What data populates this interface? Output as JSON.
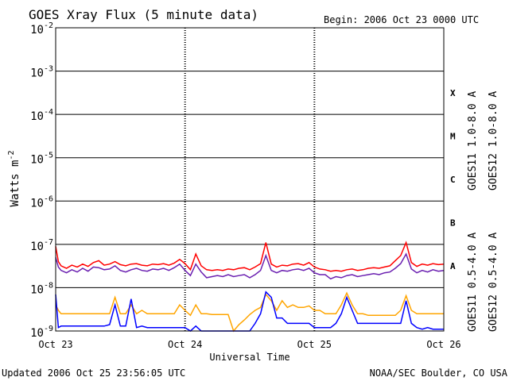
{
  "header": {
    "title": "GOES Xray Flux (5 minute data)",
    "begin": "Begin:  2006 Oct 23 0000 UTC"
  },
  "footer": {
    "updated": "Updated 2006 Oct 25 23:56:05 UTC",
    "source": "NOAA/SEC Boulder, CO USA"
  },
  "colors": {
    "goes11_long": "#6a1fb0",
    "goes12_long": "#ff0000",
    "goes11_short": "#ffa500",
    "goes12_short": "#0000ff",
    "axis": "#000000",
    "background": "#ffffff"
  },
  "chart_data": {
    "type": "line",
    "y_scale": "log",
    "ylim": [
      1e-09,
      0.01
    ],
    "ylabel": "Watts m",
    "ylabel_sup": "-2",
    "y_tick_labels": [
      {
        "value": 0.01,
        "base": "10",
        "exp": "-2"
      },
      {
        "value": 0.001,
        "base": "10",
        "exp": "-3"
      },
      {
        "value": 0.0001,
        "base": "10",
        "exp": "-4"
      },
      {
        "value": 1e-05,
        "base": "10",
        "exp": "-5"
      },
      {
        "value": 1e-06,
        "base": "10",
        "exp": "-6"
      },
      {
        "value": 1e-07,
        "base": "10",
        "exp": "-7"
      },
      {
        "value": 1e-08,
        "base": "10",
        "exp": "-8"
      },
      {
        "value": 1e-09,
        "base": "10",
        "exp": "-9"
      }
    ],
    "flare_classes": [
      {
        "label": "X",
        "from": 0.0001,
        "to": 0.001
      },
      {
        "label": "M",
        "from": 1e-05,
        "to": 0.0001
      },
      {
        "label": "C",
        "from": 1e-06,
        "to": 1e-05
      },
      {
        "label": "B",
        "from": 1e-07,
        "to": 1e-06
      },
      {
        "label": "A",
        "from": 1e-08,
        "to": 1e-07
      }
    ],
    "xlabel": "Universal Time",
    "xlim_hours": [
      0,
      72
    ],
    "x_ticks": [
      {
        "hours": 0,
        "label": "Oct 23"
      },
      {
        "hours": 24,
        "label": "Oct 24"
      },
      {
        "hours": 48,
        "label": "Oct 25"
      },
      {
        "hours": 72,
        "label": "Oct 26"
      }
    ],
    "grid": "horizontal lines at each decade; dotted day separators",
    "legend": "right side, rotated",
    "series": [
      {
        "name": "GOES11 1.0-8.0 A",
        "color_key": "goes11_long",
        "x": [
          0,
          0.5,
          1,
          2,
          3,
          4,
          5,
          6,
          7,
          8,
          9,
          10,
          11,
          12,
          13,
          14,
          15,
          16,
          17,
          18,
          19,
          20,
          21,
          22,
          23,
          24,
          25,
          26,
          27,
          28,
          29,
          30,
          31,
          32,
          33,
          34,
          35,
          36,
          37,
          38,
          39,
          40,
          41,
          42,
          43,
          44,
          45,
          46,
          47,
          48,
          49,
          50,
          51,
          52,
          53,
          54,
          55,
          56,
          57,
          58,
          59,
          60,
          61,
          62,
          63,
          64,
          65,
          66,
          67,
          68,
          69,
          70,
          71,
          72
        ],
        "y": [
          5e-08,
          3e-08,
          2.5e-08,
          2.2e-08,
          2.6e-08,
          2.3e-08,
          2.8e-08,
          2.4e-08,
          3e-08,
          2.9e-08,
          2.6e-08,
          2.7e-08,
          3.2e-08,
          2.5e-08,
          2.3e-08,
          2.6e-08,
          2.8e-08,
          2.5e-08,
          2.4e-08,
          2.7e-08,
          2.6e-08,
          2.8e-08,
          2.5e-08,
          2.9e-08,
          3.5e-08,
          2.5e-08,
          1.9e-08,
          3.5e-08,
          2.3e-08,
          1.7e-08,
          1.8e-08,
          1.9e-08,
          1.8e-08,
          2e-08,
          1.8e-08,
          1.9e-08,
          2e-08,
          1.7e-08,
          2e-08,
          2.5e-08,
          5.5e-08,
          2.5e-08,
          2.2e-08,
          2.5e-08,
          2.4e-08,
          2.6e-08,
          2.7e-08,
          2.5e-08,
          2.8e-08,
          2.2e-08,
          2e-08,
          2e-08,
          1.6e-08,
          1.8e-08,
          1.7e-08,
          1.9e-08,
          2e-08,
          1.8e-08,
          1.9e-08,
          2e-08,
          2.1e-08,
          2e-08,
          2.2e-08,
          2.3e-08,
          2.8e-08,
          3.6e-08,
          6e-08,
          2.7e-08,
          2.2e-08,
          2.5e-08,
          2.3e-08,
          2.6e-08,
          2.4e-08,
          2.5e-08
        ]
      },
      {
        "name": "GOES12 1.0-8.0 A",
        "color_key": "goes12_long",
        "x": [
          0,
          0.5,
          1,
          2,
          3,
          4,
          5,
          6,
          7,
          8,
          9,
          10,
          11,
          12,
          13,
          14,
          15,
          16,
          17,
          18,
          19,
          20,
          21,
          22,
          23,
          24,
          25,
          26,
          27,
          28,
          29,
          30,
          31,
          32,
          33,
          34,
          35,
          36,
          37,
          38,
          39,
          40,
          41,
          42,
          43,
          44,
          45,
          46,
          47,
          48,
          49,
          50,
          51,
          52,
          53,
          54,
          55,
          56,
          57,
          58,
          59,
          60,
          61,
          62,
          63,
          64,
          65,
          66,
          67,
          68,
          69,
          70,
          71,
          72
        ],
        "y": [
          9e-08,
          4e-08,
          3.2e-08,
          2.8e-08,
          3.3e-08,
          3e-08,
          3.5e-08,
          3.1e-08,
          3.8e-08,
          4.2e-08,
          3.3e-08,
          3.5e-08,
          4e-08,
          3.4e-08,
          3.2e-08,
          3.5e-08,
          3.6e-08,
          3.3e-08,
          3.2e-08,
          3.5e-08,
          3.4e-08,
          3.6e-08,
          3.3e-08,
          3.7e-08,
          4.5e-08,
          3.6e-08,
          2.6e-08,
          6e-08,
          3.2e-08,
          2.6e-08,
          2.5e-08,
          2.6e-08,
          2.5e-08,
          2.7e-08,
          2.6e-08,
          2.8e-08,
          2.9e-08,
          2.6e-08,
          3e-08,
          3.6e-08,
          1.1e-07,
          3.5e-08,
          3e-08,
          3.3e-08,
          3.2e-08,
          3.5e-08,
          3.6e-08,
          3.3e-08,
          3.8e-08,
          3e-08,
          2.7e-08,
          2.6e-08,
          2.4e-08,
          2.5e-08,
          2.4e-08,
          2.6e-08,
          2.7e-08,
          2.5e-08,
          2.6e-08,
          2.8e-08,
          2.9e-08,
          2.8e-08,
          3e-08,
          3.2e-08,
          4.2e-08,
          5.5e-08,
          1.1e-07,
          3.8e-08,
          3.1e-08,
          3.5e-08,
          3.3e-08,
          3.6e-08,
          3.4e-08,
          3.5e-08
        ]
      },
      {
        "name": "GOES11 0.5-4.0 A",
        "color_key": "goes11_short",
        "x": [
          0,
          0.5,
          1,
          2,
          3,
          4,
          5,
          6,
          7,
          8,
          9,
          10,
          11,
          12,
          13,
          14,
          15,
          16,
          17,
          18,
          19,
          20,
          21,
          22,
          23,
          24,
          25,
          26,
          27,
          28,
          29,
          30,
          31,
          32,
          33,
          34,
          35,
          36,
          37,
          38,
          39,
          40,
          41,
          42,
          43,
          44,
          45,
          46,
          47,
          48,
          49,
          50,
          51,
          52,
          53,
          54,
          55,
          56,
          57,
          58,
          59,
          60,
          61,
          62,
          63,
          64,
          65,
          66,
          67,
          68,
          69,
          70,
          71,
          72
        ],
        "y": [
          4e-09,
          3e-09,
          2.5e-09,
          2.5e-09,
          2.5e-09,
          2.5e-09,
          2.5e-09,
          2.5e-09,
          2.5e-09,
          2.5e-09,
          2.5e-09,
          2.5e-09,
          6e-09,
          2.5e-09,
          2.5e-09,
          4e-09,
          2.5e-09,
          3e-09,
          2.5e-09,
          2.5e-09,
          2.5e-09,
          2.5e-09,
          2.5e-09,
          2.5e-09,
          4e-09,
          3e-09,
          2.3e-09,
          4e-09,
          2.5e-09,
          2.5e-09,
          2.4e-09,
          2.4e-09,
          2.4e-09,
          2.4e-09,
          1e-09,
          1.4e-09,
          1.8e-09,
          2.4e-09,
          3e-09,
          3.5e-09,
          7e-09,
          5e-09,
          3e-09,
          5e-09,
          3.5e-09,
          4e-09,
          3.5e-09,
          3.5e-09,
          3.8e-09,
          3e-09,
          3e-09,
          2.5e-09,
          2.5e-09,
          2.5e-09,
          4e-09,
          7.5e-09,
          4e-09,
          2.5e-09,
          2.5e-09,
          2.3e-09,
          2.3e-09,
          2.3e-09,
          2.3e-09,
          2.3e-09,
          2.3e-09,
          3e-09,
          6.5e-09,
          3e-09,
          2.5e-09,
          2.5e-09,
          2.5e-09,
          2.5e-09,
          2.5e-09,
          2.5e-09
        ]
      },
      {
        "name": "GOES12 0.5-4.0 A",
        "color_key": "goes12_short",
        "x": [
          0,
          0.5,
          1,
          2,
          3,
          4,
          5,
          6,
          7,
          8,
          9,
          10,
          11,
          12,
          13,
          14,
          15,
          16,
          17,
          18,
          19,
          20,
          21,
          22,
          23,
          24,
          25,
          26,
          27,
          28,
          29,
          30,
          31,
          32,
          33,
          34,
          35,
          36,
          37,
          38,
          39,
          40,
          41,
          42,
          43,
          44,
          45,
          46,
          47,
          48,
          49,
          50,
          51,
          52,
          53,
          54,
          55,
          56,
          57,
          58,
          59,
          60,
          61,
          62,
          63,
          64,
          65,
          66,
          67,
          68,
          69,
          70,
          71,
          72
        ],
        "y": [
          7e-09,
          1.2e-09,
          1.3e-09,
          1.3e-09,
          1.3e-09,
          1.3e-09,
          1.3e-09,
          1.3e-09,
          1.3e-09,
          1.3e-09,
          1.3e-09,
          1.4e-09,
          4e-09,
          1.3e-09,
          1.3e-09,
          5.5e-09,
          1.2e-09,
          1.3e-09,
          1.2e-09,
          1.2e-09,
          1.2e-09,
          1.2e-09,
          1.2e-09,
          1.2e-09,
          1.2e-09,
          1.2e-09,
          1e-09,
          1.3e-09,
          1e-09,
          1e-09,
          1e-09,
          1e-09,
          1e-09,
          1e-09,
          1e-09,
          1e-09,
          1e-09,
          1e-09,
          1.5e-09,
          2.5e-09,
          8e-09,
          6e-09,
          2e-09,
          2e-09,
          1.5e-09,
          1.5e-09,
          1.5e-09,
          1.5e-09,
          1.5e-09,
          1.2e-09,
          1.2e-09,
          1.2e-09,
          1.2e-09,
          1.5e-09,
          2.5e-09,
          6e-09,
          3e-09,
          1.5e-09,
          1.5e-09,
          1.5e-09,
          1.5e-09,
          1.5e-09,
          1.5e-09,
          1.5e-09,
          1.5e-09,
          1.5e-09,
          5e-09,
          1.5e-09,
          1.2e-09,
          1.1e-09,
          1.2e-09,
          1.1e-09,
          1.1e-09,
          1.1e-09
        ]
      }
    ]
  }
}
